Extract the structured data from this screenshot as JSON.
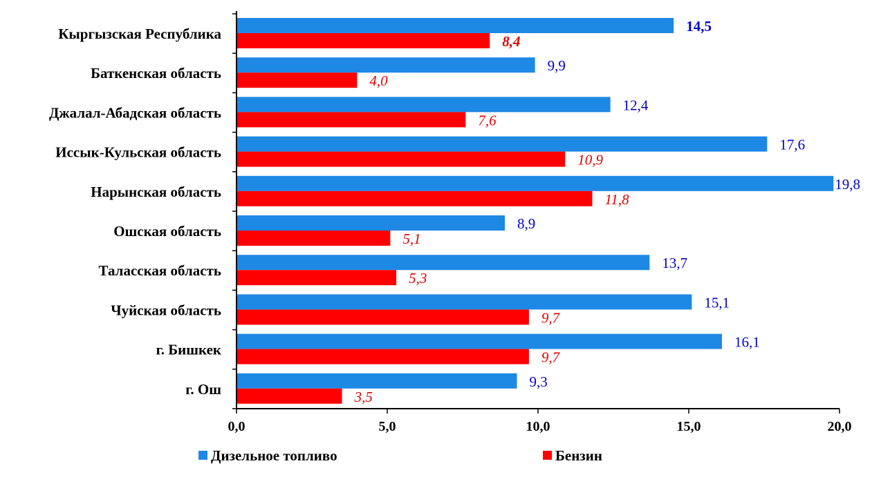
{
  "chart_data": {
    "type": "bar",
    "orientation": "horizontal",
    "categories": [
      "Кыргызская Республика",
      "Баткенская область",
      "Джалал-Абадская  область",
      "Иссык-Кульская  область",
      "Нарынская область",
      "Ошская область",
      "Таласская область",
      "Чуйская область",
      "г. Бишкек",
      "г. Ош"
    ],
    "series": [
      {
        "name": "Дизельное топливо",
        "color": "#1e88e5",
        "values": [
          14.5,
          9.9,
          12.4,
          17.6,
          19.8,
          8.9,
          13.7,
          15.1,
          16.1,
          9.3
        ],
        "labels": [
          "14,5",
          "9,9",
          "12,4",
          "17,6",
          "19,8",
          "8,9",
          "13,7",
          "15,1",
          "16,1",
          "9,3"
        ]
      },
      {
        "name": "Бензин",
        "color": "#ff0000",
        "values": [
          8.4,
          4.0,
          7.6,
          10.9,
          11.8,
          5.1,
          5.3,
          9.7,
          9.7,
          3.5
        ],
        "labels": [
          "8,4",
          "4,0",
          "7,6",
          "10,9",
          "11,8",
          "5,1",
          "5,3",
          "9,7",
          "9,7",
          "3,5"
        ]
      }
    ],
    "xlim": [
      0,
      20
    ],
    "xticks": [
      0,
      5,
      10,
      15,
      20
    ],
    "xtick_labels": [
      "0,0",
      "5,0",
      "10,0",
      "15,0",
      "20,0"
    ],
    "grid": false,
    "legend_position": "bottom",
    "label_colors": {
      "diesel": "#0000cc",
      "petrol": "#e00000"
    }
  }
}
